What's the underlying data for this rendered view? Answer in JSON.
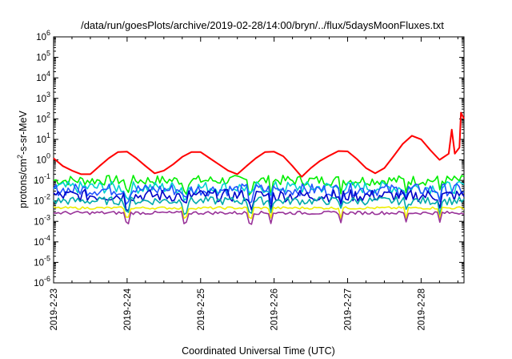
{
  "chart_data": {
    "type": "line",
    "title": "/data/run/goesPlots/archive/2019-02-28/14:00/bryn/../flux/5daysMoonFluxes.txt",
    "xlabel": "Coordinated Universal Time (UTC)",
    "ylabel": "protons/cm2-s-sr-MeV",
    "y_scale": "log",
    "ylim_exponents": [
      -6,
      6
    ],
    "y_tick_base": "10",
    "y_tick_exponents": [
      "6",
      "5",
      "4",
      "3",
      "2",
      "1",
      "0",
      "-1",
      "-2",
      "-3",
      "-4",
      "-5",
      "-6"
    ],
    "x_ticks": [
      "2019-2-23",
      "2019-2-24",
      "2019-2-25",
      "2019-2-26",
      "2019-2-27",
      "2019-2-28"
    ],
    "xlim": [
      "2019-2-23",
      "2019-2-28 14:00"
    ],
    "grid": false,
    "series": [
      {
        "color": "#ff0000",
        "points": [
          [
            "2019-2-23 00:00",
            1.2
          ],
          [
            "2019-2-23 03:00",
            0.5
          ],
          [
            "2019-2-23 06:00",
            0.3
          ],
          [
            "2019-2-23 09:00",
            0.2
          ],
          [
            "2019-2-23 12:00",
            0.2
          ],
          [
            "2019-2-23 15:00",
            0.5
          ],
          [
            "2019-2-23 18:00",
            1.2
          ],
          [
            "2019-2-23 21:00",
            2.4
          ],
          [
            "2019-2-24 00:00",
            2.5
          ],
          [
            "2019-2-24 03:00",
            1.2
          ],
          [
            "2019-2-24 06:00",
            0.5
          ],
          [
            "2019-2-24 09:00",
            0.22
          ],
          [
            "2019-2-24 12:00",
            0.3
          ],
          [
            "2019-2-24 15:00",
            0.6
          ],
          [
            "2019-2-24 18:00",
            1.4
          ],
          [
            "2019-2-24 21:00",
            2.4
          ],
          [
            "2019-2-25 00:00",
            2.4
          ],
          [
            "2019-2-25 03:00",
            1.2
          ],
          [
            "2019-2-25 06:00",
            0.6
          ],
          [
            "2019-2-25 09:00",
            0.3
          ],
          [
            "2019-2-25 12:00",
            0.2
          ],
          [
            "2019-2-25 15:00",
            0.5
          ],
          [
            "2019-2-25 18:00",
            1.2
          ],
          [
            "2019-2-25 21:00",
            2.4
          ],
          [
            "2019-2-26 00:00",
            2.5
          ],
          [
            "2019-2-26 03:00",
            1.5
          ],
          [
            "2019-2-26 06:00",
            0.5
          ],
          [
            "2019-2-26 09:00",
            0.15
          ],
          [
            "2019-2-26 12:00",
            0.4
          ],
          [
            "2019-2-26 15:00",
            0.9
          ],
          [
            "2019-2-26 18:00",
            1.6
          ],
          [
            "2019-2-26 21:00",
            2.7
          ],
          [
            "2019-2-27 00:00",
            2.6
          ],
          [
            "2019-2-27 03:00",
            1.1
          ],
          [
            "2019-2-27 06:00",
            0.4
          ],
          [
            "2019-2-27 09:00",
            0.22
          ],
          [
            "2019-2-27 12:00",
            0.4
          ],
          [
            "2019-2-27 15:00",
            1.5
          ],
          [
            "2019-2-27 18:00",
            6
          ],
          [
            "2019-2-27 21:00",
            15
          ],
          [
            "2019-2-28 00:00",
            10
          ],
          [
            "2019-2-28 03:00",
            3
          ],
          [
            "2019-2-28 06:00",
            1.0
          ],
          [
            "2019-2-28 09:00",
            2.0
          ],
          [
            "2019-2-28 10:00",
            30
          ],
          [
            "2019-2-28 11:00",
            2
          ],
          [
            "2019-2-28 12:30",
            4
          ],
          [
            "2019-2-28 13:00",
            200
          ],
          [
            "2019-2-28 14:00",
            100
          ]
        ]
      },
      {
        "color": "#00ee00",
        "base": 0.1,
        "jitter": 0.25
      },
      {
        "color": "#00d0d0",
        "base": 0.045,
        "jitter": 0.3
      },
      {
        "color": "#2255ff",
        "base": 0.035,
        "jitter": 0.3
      },
      {
        "color": "#0000c8",
        "base": 0.018,
        "jitter": 0.3
      },
      {
        "color": "#00aaaa",
        "base": 0.01,
        "jitter": 0.2
      },
      {
        "color": "#eeee00",
        "base": 0.0045,
        "jitter": 0.06
      },
      {
        "color": "#993399",
        "base": 0.0026,
        "jitter": 0.08
      }
    ]
  }
}
